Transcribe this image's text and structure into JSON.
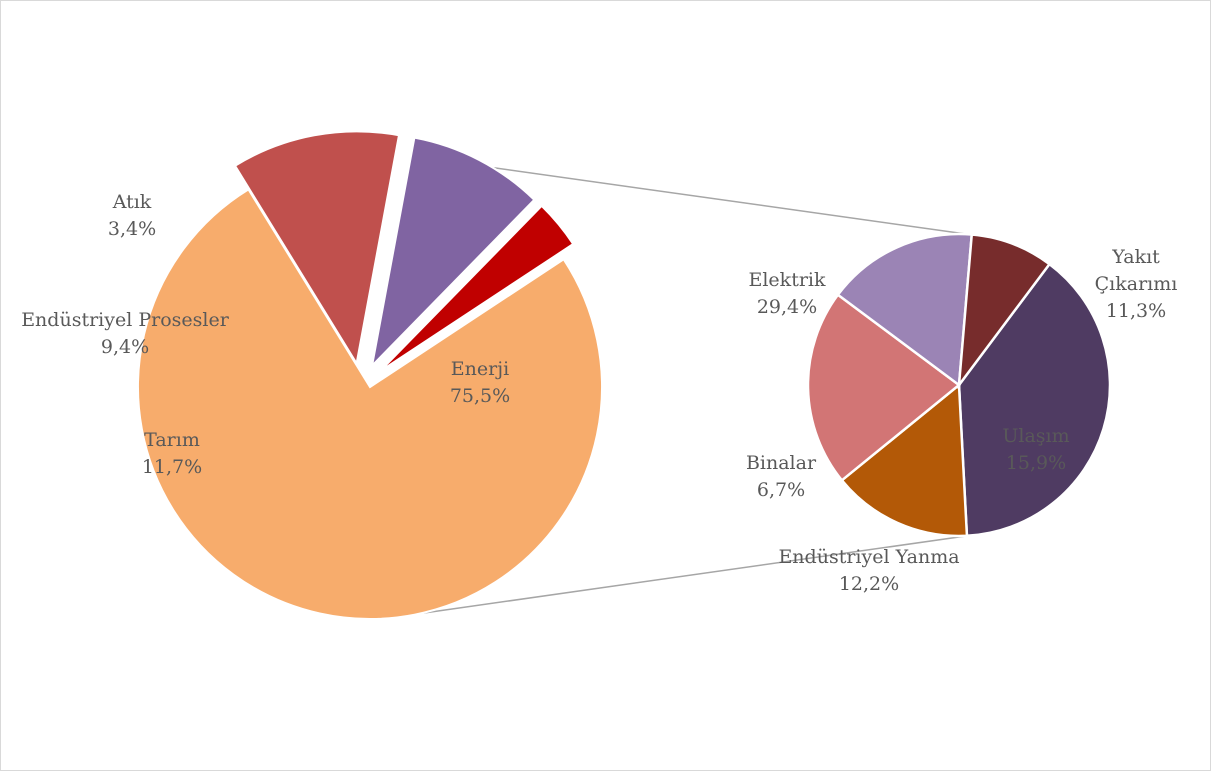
{
  "chart_data": {
    "type": "pie",
    "title": "",
    "main_pie": {
      "slices": [
        {
          "label": "Enerji",
          "value": 75.5,
          "value_label": "75,5%",
          "color": "#F7AC6C"
        },
        {
          "label": "Tarım",
          "value": 11.7,
          "value_label": "11,7%",
          "color": "#C0504D"
        },
        {
          "label": "Endüstriyel Prosesler",
          "value": 9.4,
          "value_label": "9,4%",
          "color": "#8064A2"
        },
        {
          "label": "Atık",
          "value": 3.4,
          "value_label": "3,4%",
          "color": "#C00000"
        }
      ]
    },
    "detail_pie": {
      "parent": "Enerji",
      "slices": [
        {
          "label": "Elektrik",
          "value": 29.4,
          "value_label": "29,4%",
          "color": "#4F3B62"
        },
        {
          "label": "Yakıt Çıkarımı",
          "value": 11.3,
          "value_label": "11,3%",
          "color": "#B35907"
        },
        {
          "label": "Ulaşım",
          "value": 15.9,
          "value_label": "15,9%",
          "color": "#D27575"
        },
        {
          "label": "Endüstriyel Yanma",
          "value": 12.2,
          "value_label": "12,2%",
          "color": "#9B84B5"
        },
        {
          "label": "Binalar",
          "value": 6.7,
          "value_label": "6,7%",
          "color": "#772C2C"
        }
      ]
    },
    "connector_color": "#a6a6a6",
    "legend": "none"
  }
}
